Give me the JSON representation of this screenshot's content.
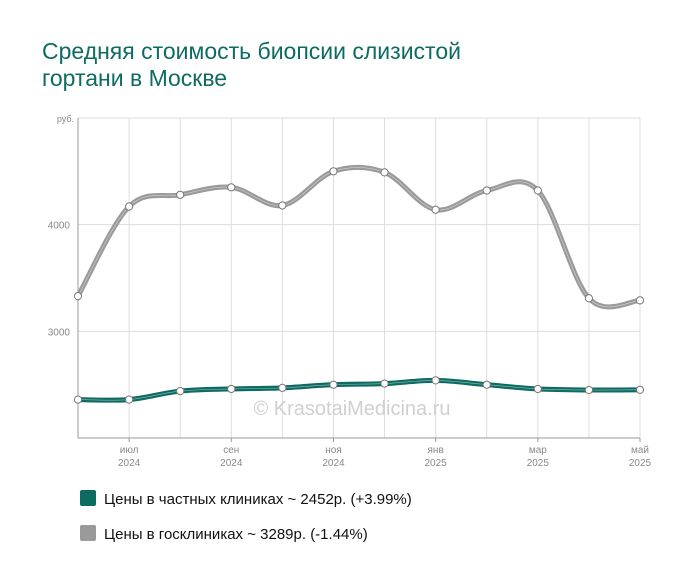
{
  "title_lines": [
    "Средняя стоимость биопсии слизистой",
    "гортани в Москве"
  ],
  "watermark": "© KrasotaiMedicina.ru",
  "colors": {
    "private": "#0e6b62",
    "public": "#9a9a9a",
    "title": "#0e6b62",
    "grid": "#dddddd"
  },
  "legend": [
    {
      "label": "Цены в частных клиниках ~ 2452р. (+3.99%)",
      "color": "#0e6b62"
    },
    {
      "label": "Цены в госклиниках ~ 3289р. (-1.44%)",
      "color": "#9a9a9a"
    }
  ],
  "chart_data": {
    "type": "line",
    "title": "Средняя стоимость биопсии слизистой гортани в Москве",
    "ylabel": "руб.",
    "ylim": [
      2000,
      5000
    ],
    "yticks": [
      3000,
      4000
    ],
    "x_labels": [
      {
        "index": 1,
        "month": "июл",
        "year": "2024"
      },
      {
        "index": 3,
        "month": "сен",
        "year": "2024"
      },
      {
        "index": 5,
        "month": "ноя",
        "year": "2024"
      },
      {
        "index": 7,
        "month": "янв",
        "year": "2025"
      },
      {
        "index": 9,
        "month": "мар",
        "year": "2025"
      },
      {
        "index": 11,
        "month": "май",
        "year": "2025"
      }
    ],
    "categories": [
      "2024-06",
      "2024-07",
      "2024-08",
      "2024-09",
      "2024-10",
      "2024-11",
      "2024-12",
      "2025-01",
      "2025-02",
      "2025-03",
      "2025-04",
      "2025-05"
    ],
    "series": [
      {
        "name": "Цены в госклиниках ~ 3289р. (-1.44%)",
        "color": "#9a9a9a",
        "values": [
          3330,
          4170,
          4280,
          4350,
          4180,
          4500,
          4490,
          4140,
          4320,
          4320,
          3310,
          3290
        ]
      },
      {
        "name": "Цены в частных клиниках ~ 2452р. (+3.99%)",
        "color": "#0e6b62",
        "values": [
          2360,
          2360,
          2440,
          2460,
          2470,
          2500,
          2510,
          2540,
          2500,
          2460,
          2450,
          2452
        ]
      }
    ],
    "grid": true,
    "legend_position": "bottom"
  }
}
